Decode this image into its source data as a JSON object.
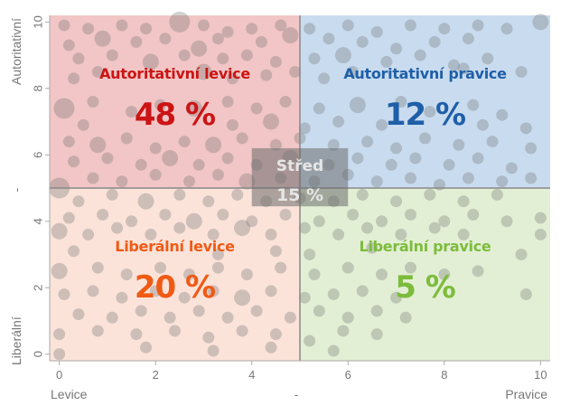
{
  "chart_data": {
    "type": "scatter",
    "x": {
      "label_left": "Levice",
      "label_center": "-",
      "label_right": "Pravice",
      "ticks": [
        0,
        2,
        4,
        6,
        8,
        10
      ],
      "range": [
        -0.2,
        10.2
      ]
    },
    "y": {
      "label_top": "Autoritativní",
      "label_center": "-",
      "label_bottom": "Liberální",
      "ticks": [
        0,
        2,
        4,
        6,
        8,
        10
      ],
      "range": [
        -0.2,
        10.2
      ]
    },
    "divider": {
      "x": 5,
      "y": 5
    },
    "colors": {
      "authoritarian_left_bg": "#f2c6c6",
      "authoritarian_right_bg": "#c9dcef",
      "liberal_left_bg": "#fbe3da",
      "liberal_right_bg": "#e3efd5",
      "bubble": "#6f6f6f",
      "center_box": "#6b6b6b"
    },
    "quadrants": [
      {
        "id": "authoritarian-left",
        "name": "Autoritativní levice",
        "percent": "48 %",
        "color": "#cc1414",
        "cx": 2.4,
        "name_y": 8.3,
        "pct_y": 6.9
      },
      {
        "id": "authoritarian-right",
        "name": "Autoritativní pravice",
        "percent": "12 %",
        "color": "#1f5fa8",
        "cx": 7.6,
        "name_y": 8.3,
        "pct_y": 6.9
      },
      {
        "id": "liberal-left",
        "name": "Liberální levice",
        "percent": "20 %",
        "color": "#f05a14",
        "cx": 2.4,
        "name_y": 3.1,
        "pct_y": 1.7
      },
      {
        "id": "liberal-right",
        "name": "Liberální pravice",
        "percent": "5 %",
        "color": "#7cbc3c",
        "cx": 7.6,
        "name_y": 3.1,
        "pct_y": 1.7
      }
    ],
    "center": {
      "name": "Střed",
      "percent": "15 %",
      "x_range": [
        4.0,
        6.0
      ],
      "y_range": [
        4.45,
        6.2
      ]
    },
    "points": [
      [
        0.1,
        9.9,
        1
      ],
      [
        0.6,
        9.8,
        1
      ],
      [
        1.3,
        9.9,
        1
      ],
      [
        1.8,
        9.8,
        1
      ],
      [
        2.5,
        10.0,
        3
      ],
      [
        3.0,
        9.9,
        1
      ],
      [
        3.5,
        9.7,
        1
      ],
      [
        4.0,
        9.8,
        1
      ],
      [
        4.6,
        9.9,
        1
      ],
      [
        5.2,
        9.8,
        1
      ],
      [
        6.0,
        9.9,
        1
      ],
      [
        6.6,
        9.7,
        1
      ],
      [
        7.3,
        9.9,
        1
      ],
      [
        8.0,
        9.8,
        1
      ],
      [
        8.7,
        9.9,
        1
      ],
      [
        9.3,
        9.8,
        1
      ],
      [
        10.0,
        10.0,
        2
      ],
      [
        0.2,
        9.3,
        1
      ],
      [
        0.9,
        9.5,
        2
      ],
      [
        1.6,
        9.4,
        1
      ],
      [
        2.2,
        9.5,
        1
      ],
      [
        2.9,
        9.2,
        2
      ],
      [
        3.3,
        9.5,
        1
      ],
      [
        4.2,
        9.4,
        1
      ],
      [
        4.8,
        9.6,
        2
      ],
      [
        5.6,
        9.5,
        1
      ],
      [
        6.3,
        9.4,
        1
      ],
      [
        7.0,
        9.2,
        1
      ],
      [
        7.8,
        9.4,
        1
      ],
      [
        8.5,
        9.5,
        1
      ],
      [
        0.4,
        8.9,
        1
      ],
      [
        1.1,
        9.0,
        1
      ],
      [
        1.9,
        8.8,
        2
      ],
      [
        2.6,
        9.0,
        1
      ],
      [
        3.4,
        8.9,
        1
      ],
      [
        3.9,
        9.0,
        1
      ],
      [
        4.5,
        8.8,
        1
      ],
      [
        5.3,
        8.9,
        1
      ],
      [
        5.9,
        9.0,
        2
      ],
      [
        6.8,
        8.8,
        1
      ],
      [
        7.5,
        9.0,
        1
      ],
      [
        8.2,
        8.7,
        1
      ],
      [
        8.9,
        8.9,
        1
      ],
      [
        9.6,
        8.5,
        1
      ],
      [
        0.3,
        8.3,
        1
      ],
      [
        0.8,
        8.5,
        1
      ],
      [
        3.0,
        8.5,
        2
      ],
      [
        3.6,
        8.3,
        1
      ],
      [
        4.3,
        8.4,
        1
      ],
      [
        4.9,
        8.5,
        1
      ],
      [
        5.5,
        8.3,
        1
      ],
      [
        6.1,
        8.5,
        1
      ],
      [
        8.4,
        8.6,
        1
      ],
      [
        0.1,
        7.4,
        3
      ],
      [
        0.7,
        7.6,
        1
      ],
      [
        1.5,
        7.3,
        1
      ],
      [
        2.1,
        7.5,
        1
      ],
      [
        2.8,
        7.4,
        2
      ],
      [
        3.5,
        7.6,
        1
      ],
      [
        4.1,
        7.4,
        1
      ],
      [
        4.7,
        7.6,
        1
      ],
      [
        5.4,
        7.4,
        1
      ],
      [
        6.2,
        7.5,
        2
      ],
      [
        7.1,
        7.6,
        1
      ],
      [
        7.7,
        7.3,
        1
      ],
      [
        8.6,
        7.5,
        1
      ],
      [
        9.2,
        7.2,
        1
      ],
      [
        0.5,
        6.9,
        1
      ],
      [
        3.6,
        6.9,
        1
      ],
      [
        4.4,
        7.0,
        2
      ],
      [
        5.1,
        6.8,
        1
      ],
      [
        5.8,
        7.0,
        1
      ],
      [
        6.7,
        6.9,
        1
      ],
      [
        8.8,
        6.9,
        1
      ],
      [
        9.7,
        6.8,
        1
      ],
      [
        0.2,
        6.4,
        1
      ],
      [
        0.8,
        6.3,
        2
      ],
      [
        1.4,
        6.5,
        1
      ],
      [
        2.0,
        6.2,
        1
      ],
      [
        2.6,
        6.4,
        1
      ],
      [
        3.2,
        6.3,
        2
      ],
      [
        3.8,
        6.5,
        1
      ],
      [
        4.5,
        6.3,
        1
      ],
      [
        5.0,
        6.5,
        1
      ],
      [
        5.7,
        6.3,
        1
      ],
      [
        6.4,
        6.4,
        1
      ],
      [
        7.0,
        6.2,
        1
      ],
      [
        7.6,
        6.5,
        1
      ],
      [
        8.3,
        6.3,
        1
      ],
      [
        9.0,
        6.4,
        1
      ],
      [
        9.8,
        6.2,
        1
      ],
      [
        0.3,
        5.8,
        1
      ],
      [
        1.0,
        5.9,
        1
      ],
      [
        1.7,
        5.7,
        1
      ],
      [
        2.3,
        5.9,
        2
      ],
      [
        2.9,
        5.7,
        1
      ],
      [
        3.5,
        5.9,
        1
      ],
      [
        4.1,
        5.7,
        1
      ],
      [
        4.8,
        5.9,
        2
      ],
      [
        5.6,
        5.7,
        1
      ],
      [
        6.2,
        5.9,
        1
      ],
      [
        6.9,
        5.7,
        1
      ],
      [
        7.4,
        5.9,
        1
      ],
      [
        8.1,
        5.7,
        1
      ],
      [
        8.7,
        5.9,
        1
      ],
      [
        9.4,
        5.6,
        1
      ],
      [
        0.0,
        5.0,
        3
      ],
      [
        0.7,
        5.3,
        1
      ],
      [
        1.3,
        5.2,
        1
      ],
      [
        2.0,
        5.4,
        1
      ],
      [
        2.7,
        5.2,
        1
      ],
      [
        3.3,
        5.4,
        1
      ],
      [
        3.9,
        5.2,
        2
      ],
      [
        4.6,
        5.3,
        1
      ],
      [
        5.3,
        5.2,
        1
      ],
      [
        6.0,
        5.4,
        1
      ],
      [
        6.6,
        5.2,
        1
      ],
      [
        7.3,
        5.3,
        1
      ],
      [
        7.9,
        5.1,
        1
      ],
      [
        8.5,
        5.3,
        1
      ],
      [
        9.2,
        5.2,
        1
      ],
      [
        9.8,
        5.3,
        1
      ],
      [
        0.4,
        4.6,
        1
      ],
      [
        1.1,
        4.8,
        1
      ],
      [
        1.8,
        4.6,
        2
      ],
      [
        2.5,
        4.8,
        1
      ],
      [
        3.1,
        4.6,
        1
      ],
      [
        3.7,
        4.8,
        1
      ],
      [
        4.3,
        4.6,
        1
      ],
      [
        5.0,
        4.7,
        1
      ],
      [
        5.7,
        4.6,
        1
      ],
      [
        6.3,
        4.8,
        1
      ],
      [
        7.0,
        4.6,
        1
      ],
      [
        7.7,
        4.8,
        1
      ],
      [
        8.4,
        4.6,
        1
      ],
      [
        9.1,
        4.8,
        1
      ],
      [
        0.2,
        4.1,
        1
      ],
      [
        0.9,
        4.2,
        1
      ],
      [
        1.5,
        4.0,
        1
      ],
      [
        2.2,
        4.2,
        1
      ],
      [
        2.8,
        4.0,
        2
      ],
      [
        3.4,
        4.2,
        1
      ],
      [
        4.0,
        4.0,
        1
      ],
      [
        4.7,
        4.2,
        1
      ],
      [
        5.4,
        4.0,
        1
      ],
      [
        6.1,
        4.2,
        1
      ],
      [
        6.7,
        4.0,
        1
      ],
      [
        7.3,
        4.2,
        1
      ],
      [
        8.0,
        4.0,
        1
      ],
      [
        8.6,
        4.2,
        1
      ],
      [
        9.3,
        4.0,
        1
      ],
      [
        10.0,
        4.1,
        1
      ],
      [
        0.0,
        3.7,
        2
      ],
      [
        0.6,
        3.6,
        1
      ],
      [
        1.2,
        3.8,
        1
      ],
      [
        1.9,
        3.6,
        1
      ],
      [
        2.5,
        3.8,
        1
      ],
      [
        3.2,
        3.6,
        1
      ],
      [
        3.8,
        3.8,
        2
      ],
      [
        4.4,
        3.6,
        1
      ],
      [
        5.1,
        3.8,
        1
      ],
      [
        5.8,
        3.6,
        1
      ],
      [
        6.4,
        3.8,
        1
      ],
      [
        7.1,
        3.6,
        1
      ],
      [
        7.8,
        3.8,
        1
      ],
      [
        8.4,
        3.6,
        1
      ],
      [
        10.0,
        3.6,
        1
      ],
      [
        0.3,
        3.1,
        1
      ],
      [
        3.3,
        3.0,
        1
      ],
      [
        4.5,
        3.1,
        1
      ],
      [
        5.2,
        3.0,
        1
      ],
      [
        6.5,
        3.2,
        1
      ],
      [
        9.6,
        3.0,
        1
      ],
      [
        0.0,
        2.5,
        2
      ],
      [
        0.8,
        2.6,
        1
      ],
      [
        1.4,
        2.4,
        1
      ],
      [
        2.1,
        2.6,
        1
      ],
      [
        2.7,
        2.4,
        1
      ],
      [
        3.3,
        2.6,
        1
      ],
      [
        3.9,
        2.4,
        1
      ],
      [
        4.6,
        2.6,
        1
      ],
      [
        5.3,
        2.4,
        1
      ],
      [
        6.0,
        2.6,
        1
      ],
      [
        6.7,
        2.4,
        1
      ],
      [
        7.3,
        2.6,
        1
      ],
      [
        8.0,
        2.4,
        1
      ],
      [
        8.7,
        2.5,
        1
      ],
      [
        0.1,
        1.8,
        1
      ],
      [
        0.7,
        1.9,
        1
      ],
      [
        1.3,
        1.7,
        1
      ],
      [
        2.0,
        1.9,
        1
      ],
      [
        2.6,
        1.7,
        1
      ],
      [
        3.2,
        1.9,
        1
      ],
      [
        3.8,
        1.7,
        2
      ],
      [
        4.4,
        1.9,
        1
      ],
      [
        5.1,
        1.7,
        1
      ],
      [
        5.7,
        1.8,
        1
      ],
      [
        6.3,
        1.9,
        1
      ],
      [
        7.0,
        1.7,
        1
      ],
      [
        9.7,
        1.8,
        1
      ],
      [
        0.4,
        1.2,
        1
      ],
      [
        1.1,
        1.1,
        1
      ],
      [
        1.7,
        1.3,
        1
      ],
      [
        2.3,
        1.1,
        1
      ],
      [
        2.9,
        1.3,
        1
      ],
      [
        3.5,
        1.1,
        1
      ],
      [
        4.1,
        1.3,
        1
      ],
      [
        4.8,
        1.1,
        1
      ],
      [
        5.4,
        1.3,
        1
      ],
      [
        6.0,
        1.1,
        1
      ],
      [
        6.6,
        1.3,
        1
      ],
      [
        7.2,
        1.1,
        1
      ],
      [
        0.0,
        0.6,
        1
      ],
      [
        0.8,
        0.7,
        1
      ],
      [
        1.6,
        0.6,
        1
      ],
      [
        2.4,
        0.7,
        1
      ],
      [
        3.1,
        0.5,
        1
      ],
      [
        3.8,
        0.7,
        1
      ],
      [
        4.5,
        0.6,
        1
      ],
      [
        5.2,
        0.4,
        1
      ],
      [
        5.9,
        0.7,
        1
      ],
      [
        6.6,
        0.6,
        1
      ],
      [
        0.0,
        0.0,
        1
      ],
      [
        1.8,
        0.2,
        1
      ],
      [
        3.2,
        0.1,
        1
      ],
      [
        4.4,
        0.2,
        1
      ],
      [
        5.7,
        0.1,
        1
      ]
    ]
  }
}
